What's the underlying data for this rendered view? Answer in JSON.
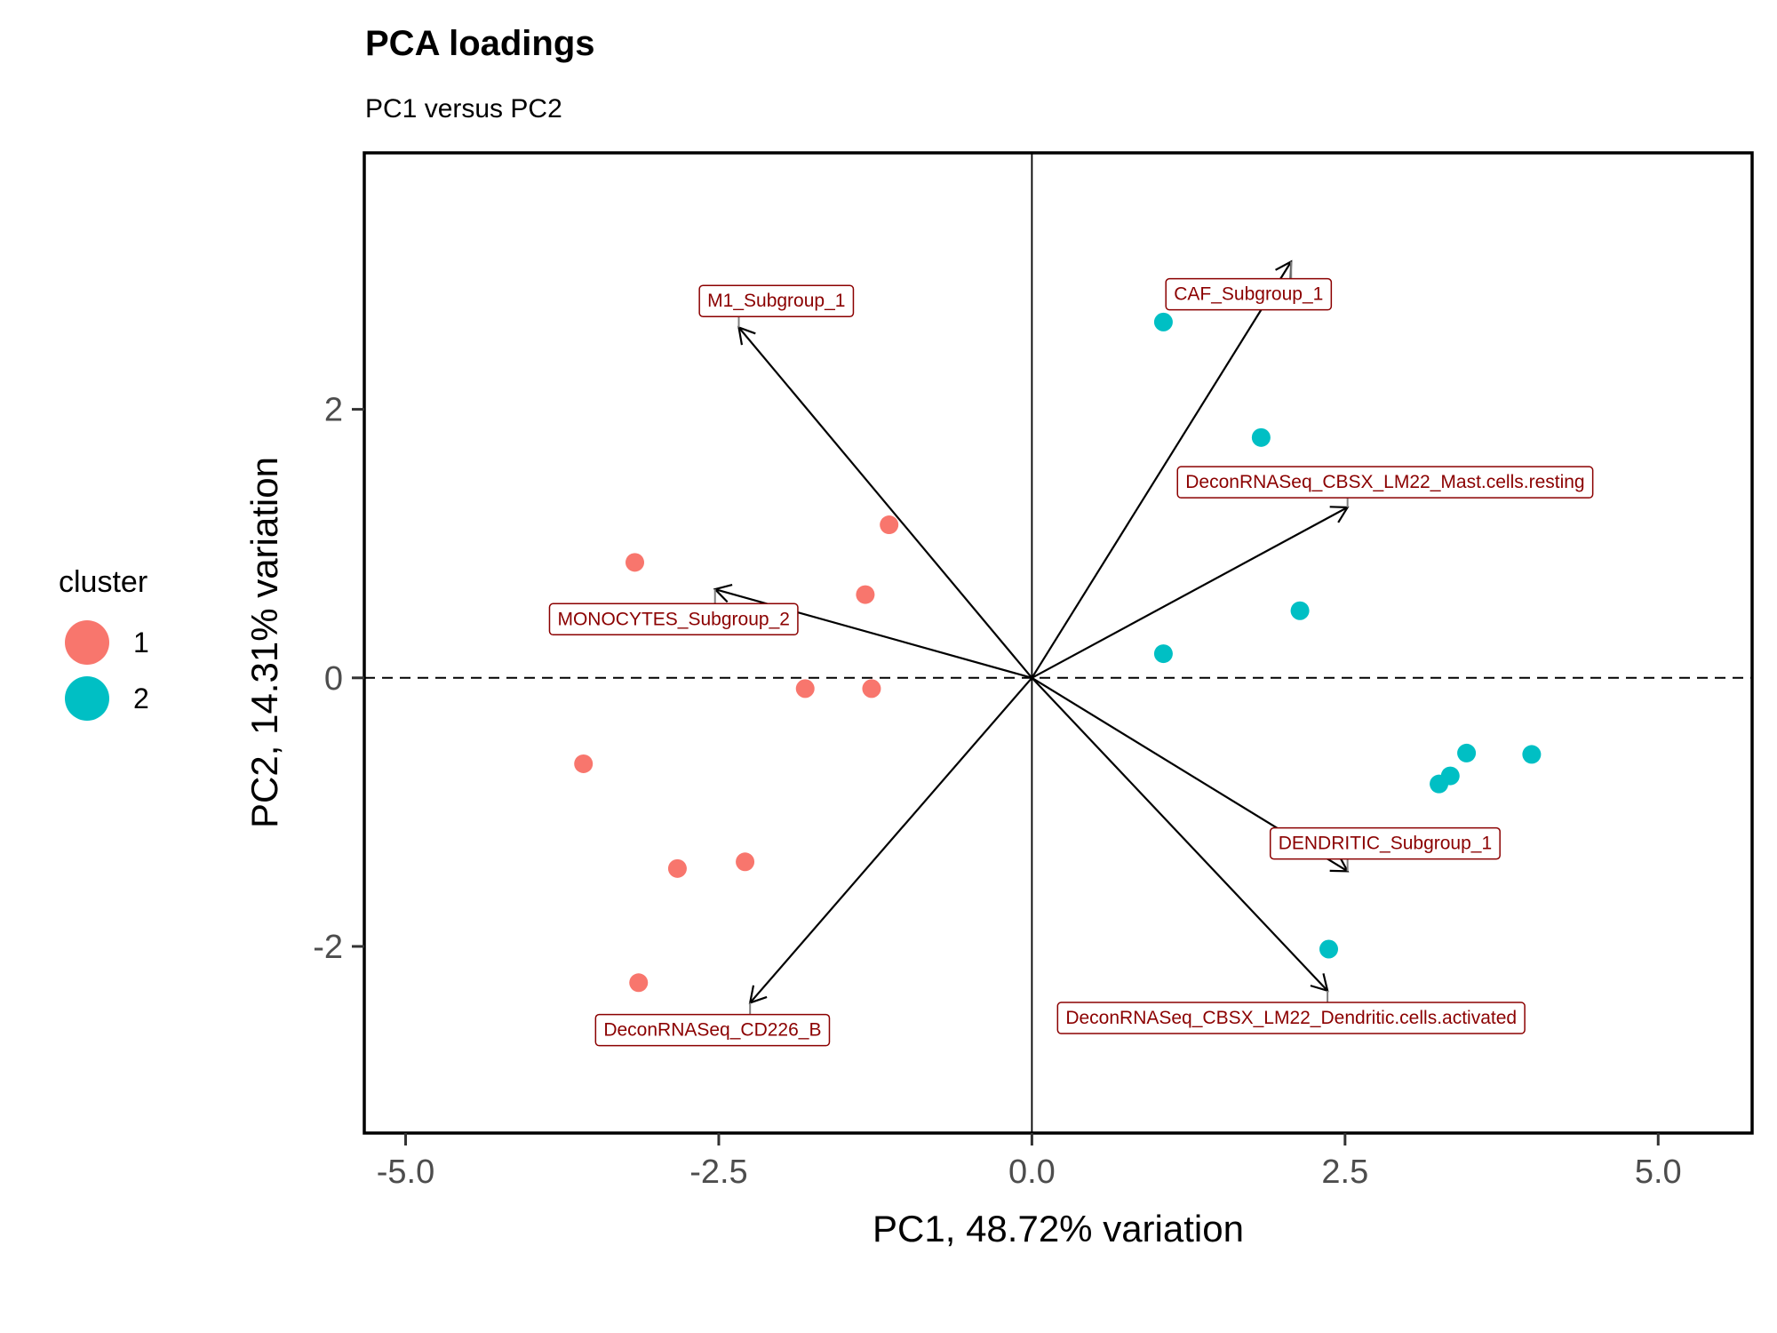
{
  "chart_data": {
    "type": "scatter",
    "title": "PCA loadings",
    "subtitle": "PC1 versus PC2",
    "xlabel": "PC1, 48.72% variation",
    "ylabel": "PC2, 14.31% variation",
    "xlim": [
      -5.33,
      5.75
    ],
    "ylim": [
      -3.39,
      3.91
    ],
    "xticks": [
      -5.0,
      -2.5,
      0.0,
      2.5,
      5.0
    ],
    "xtick_labels": [
      "-5.0",
      "-2.5",
      "0.0",
      "2.5",
      "5.0"
    ],
    "yticks": [
      -2,
      0,
      2
    ],
    "ytick_labels": [
      "-2",
      "0",
      "2"
    ],
    "reference_lines": {
      "x": 0,
      "y": 0
    },
    "grid": false,
    "legend": {
      "title": "cluster",
      "placement": "left",
      "entries": [
        {
          "label": "1",
          "color": "#F8766D"
        },
        {
          "label": "2",
          "color": "#00BFC4"
        }
      ]
    },
    "series": [
      {
        "name": "1",
        "color": "#F8766D",
        "points": [
          {
            "x": -1.89,
            "y": 2.8
          },
          {
            "x": -1.14,
            "y": 1.14
          },
          {
            "x": -3.17,
            "y": 0.86
          },
          {
            "x": -1.33,
            "y": 0.62
          },
          {
            "x": -1.81,
            "y": -0.08
          },
          {
            "x": -1.28,
            "y": -0.08
          },
          {
            "x": -3.58,
            "y": -0.64
          },
          {
            "x": -2.29,
            "y": -1.37
          },
          {
            "x": -2.83,
            "y": -1.42
          },
          {
            "x": -3.14,
            "y": -2.27
          }
        ]
      },
      {
        "name": "2",
        "color": "#00BFC4",
        "points": [
          {
            "x": 1.05,
            "y": 2.65
          },
          {
            "x": 1.83,
            "y": 1.79
          },
          {
            "x": 2.14,
            "y": 0.5
          },
          {
            "x": 1.05,
            "y": 0.18
          },
          {
            "x": 3.47,
            "y": -0.56
          },
          {
            "x": 3.99,
            "y": -0.57
          },
          {
            "x": 3.34,
            "y": -0.73
          },
          {
            "x": 3.25,
            "y": -0.79
          },
          {
            "x": 2.37,
            "y": -2.02
          }
        ]
      }
    ],
    "loadings": [
      {
        "label": "M1_Subgroup_1",
        "x": -2.34,
        "y": 2.61,
        "label_x": -2.04,
        "label_y": 2.81
      },
      {
        "label": "CAF_Subgroup_1",
        "x": 2.07,
        "y": 3.1,
        "label_x": 1.73,
        "label_y": 2.86
      },
      {
        "label": "DeconRNASeq_CBSX_LM22_Mast.cells.resting",
        "x": 2.52,
        "y": 1.27,
        "label_x": 2.82,
        "label_y": 1.46
      },
      {
        "label": "MONOCYTES_Subgroup_2",
        "x": -2.53,
        "y": 0.66,
        "label_x": -2.86,
        "label_y": 0.44
      },
      {
        "label": "DENDRITIC_Subgroup_1",
        "x": 2.52,
        "y": -1.44,
        "label_x": 2.82,
        "label_y": -1.23
      },
      {
        "label": "DeconRNASeq_CBSX_LM22_Dendritic.cells.activated",
        "x": 2.36,
        "y": -2.33,
        "label_x": 2.07,
        "label_y": -2.53
      },
      {
        "label": "DeconRNASeq_CD226_B",
        "x": -2.25,
        "y": -2.42,
        "label_x": -2.55,
        "label_y": -2.62
      }
    ],
    "label_color": "#8B0000"
  }
}
